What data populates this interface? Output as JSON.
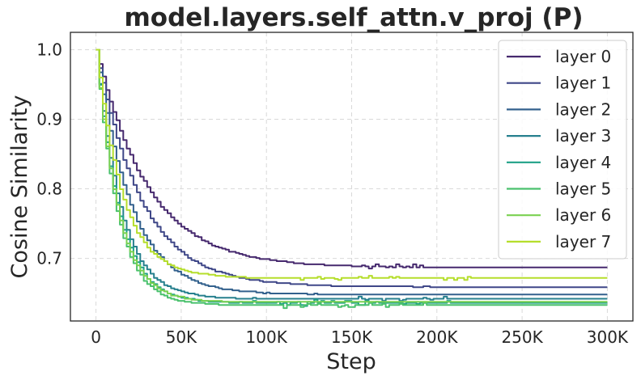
{
  "chart_data": {
    "type": "line",
    "title": "model.layers.self_attn.v_proj (P)",
    "xlabel": "Step",
    "ylabel": "Cosine Similarity",
    "xlim": [
      -15000,
      315000
    ],
    "ylim": [
      0.61,
      1.025
    ],
    "xticks": [
      0,
      50000,
      100000,
      150000,
      200000,
      250000,
      300000
    ],
    "xtick_labels": [
      "0",
      "50K",
      "100K",
      "150K",
      "200K",
      "250K",
      "300K"
    ],
    "yticks": [
      0.7,
      0.8,
      0.9,
      1.0
    ],
    "ytick_labels": [
      "0.7",
      "0.8",
      "0.9",
      "1.0"
    ],
    "grid": true,
    "legend_position": "top-right",
    "series": [
      {
        "name": "layer 0",
        "color": "#46296e",
        "final": 0.687,
        "tau": 30000,
        "noise_from": 150000,
        "noise_to": 200000
      },
      {
        "name": "layer 1",
        "color": "#3f4788",
        "final": 0.659,
        "tau": 26000,
        "noise_from": 0,
        "noise_to": 0
      },
      {
        "name": "layer 2",
        "color": "#33618d",
        "final": 0.648,
        "tau": 20000,
        "noise_from": 0,
        "noise_to": 0
      },
      {
        "name": "layer 3",
        "color": "#27808e",
        "final": 0.642,
        "tau": 14000,
        "noise_from": 150000,
        "noise_to": 205000
      },
      {
        "name": "layer 4",
        "color": "#1fa187",
        "final": 0.636,
        "tau": 13000,
        "noise_from": 90000,
        "noise_to": 230000
      },
      {
        "name": "layer 5",
        "color": "#4ac16d",
        "final": 0.633,
        "tau": 12000,
        "noise_from": 100000,
        "noise_to": 200000
      },
      {
        "name": "layer 6",
        "color": "#7ad151",
        "final": 0.637,
        "tau": 12500,
        "noise_from": 0,
        "noise_to": 0
      },
      {
        "name": "layer 7",
        "color": "#b5de2b",
        "final": 0.672,
        "tau": 15000,
        "noise_from": 120000,
        "noise_to": 225000
      }
    ],
    "x_end": 300000,
    "x_step": 2000
  }
}
